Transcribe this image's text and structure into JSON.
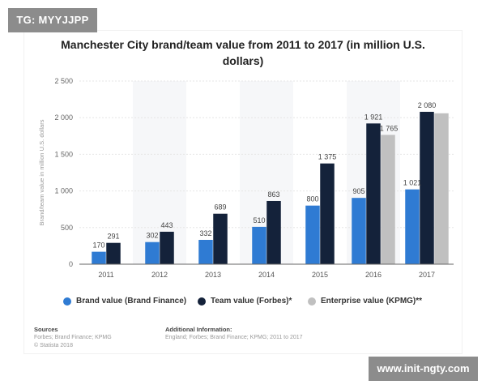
{
  "watermarks": {
    "top_left": "TG: MYYJJPP",
    "bottom_right": "www.init-ngty.com"
  },
  "colors": {
    "brand": "#2f7bd3",
    "team": "#14223a",
    "enterprise": "#c0c0c0",
    "band": "#f6f7f9",
    "grid": "#e6e6e6",
    "axis": "#666666"
  },
  "legend": {
    "brand": "Brand value (Brand Finance)",
    "team": "Team value (Forbes)*",
    "enterprise": "Enterprise value (KPMG)**"
  },
  "footer": {
    "sources_heading": "Sources",
    "sources_line1": "Forbes; Brand Finance; KPMG",
    "sources_line2": "© Statista 2018",
    "info_heading": "Additional Information:",
    "info_line1": "England; Forbes; Brand Finance; KPMG; 2011 to 2017"
  },
  "chart_data": {
    "type": "bar",
    "title": "Manchester City brand/team value from 2011 to 2017 (in million U.S. dollars)",
    "title_line1": "Manchester City brand/team value from 2011 to 2017 (in million U.S.",
    "title_line2": "dollars)",
    "xlabel": "",
    "ylabel": "Brand/team value in million U.S. dollars",
    "ylim": [
      0,
      2500
    ],
    "yticks": [
      0,
      500,
      1000,
      1500,
      2000,
      2500
    ],
    "ytick_labels": [
      "0",
      "500",
      "1 000",
      "1 500",
      "2 000",
      "2 500"
    ],
    "categories": [
      "2011",
      "2012",
      "2013",
      "2014",
      "2015",
      "2016",
      "2017"
    ],
    "series": [
      {
        "key": "brand",
        "name": "Brand value (Brand Finance)",
        "values": [
          170,
          302,
          332,
          510,
          800,
          905,
          1021
        ],
        "labels": [
          "170",
          "302",
          "332",
          "510",
          "800",
          "905",
          "1 021"
        ]
      },
      {
        "key": "team",
        "name": "Team value (Forbes)*",
        "values": [
          291,
          443,
          689,
          863,
          1375,
          1921,
          2080
        ],
        "labels": [
          "291",
          "443",
          "689",
          "863",
          "1 375",
          "1 921",
          "2 080"
        ]
      },
      {
        "key": "enterprise",
        "name": "Enterprise value (KPMG)**",
        "values": [
          null,
          null,
          null,
          null,
          null,
          1765,
          2060
        ],
        "labels": [
          null,
          null,
          null,
          null,
          null,
          "1 765",
          null
        ]
      }
    ]
  }
}
